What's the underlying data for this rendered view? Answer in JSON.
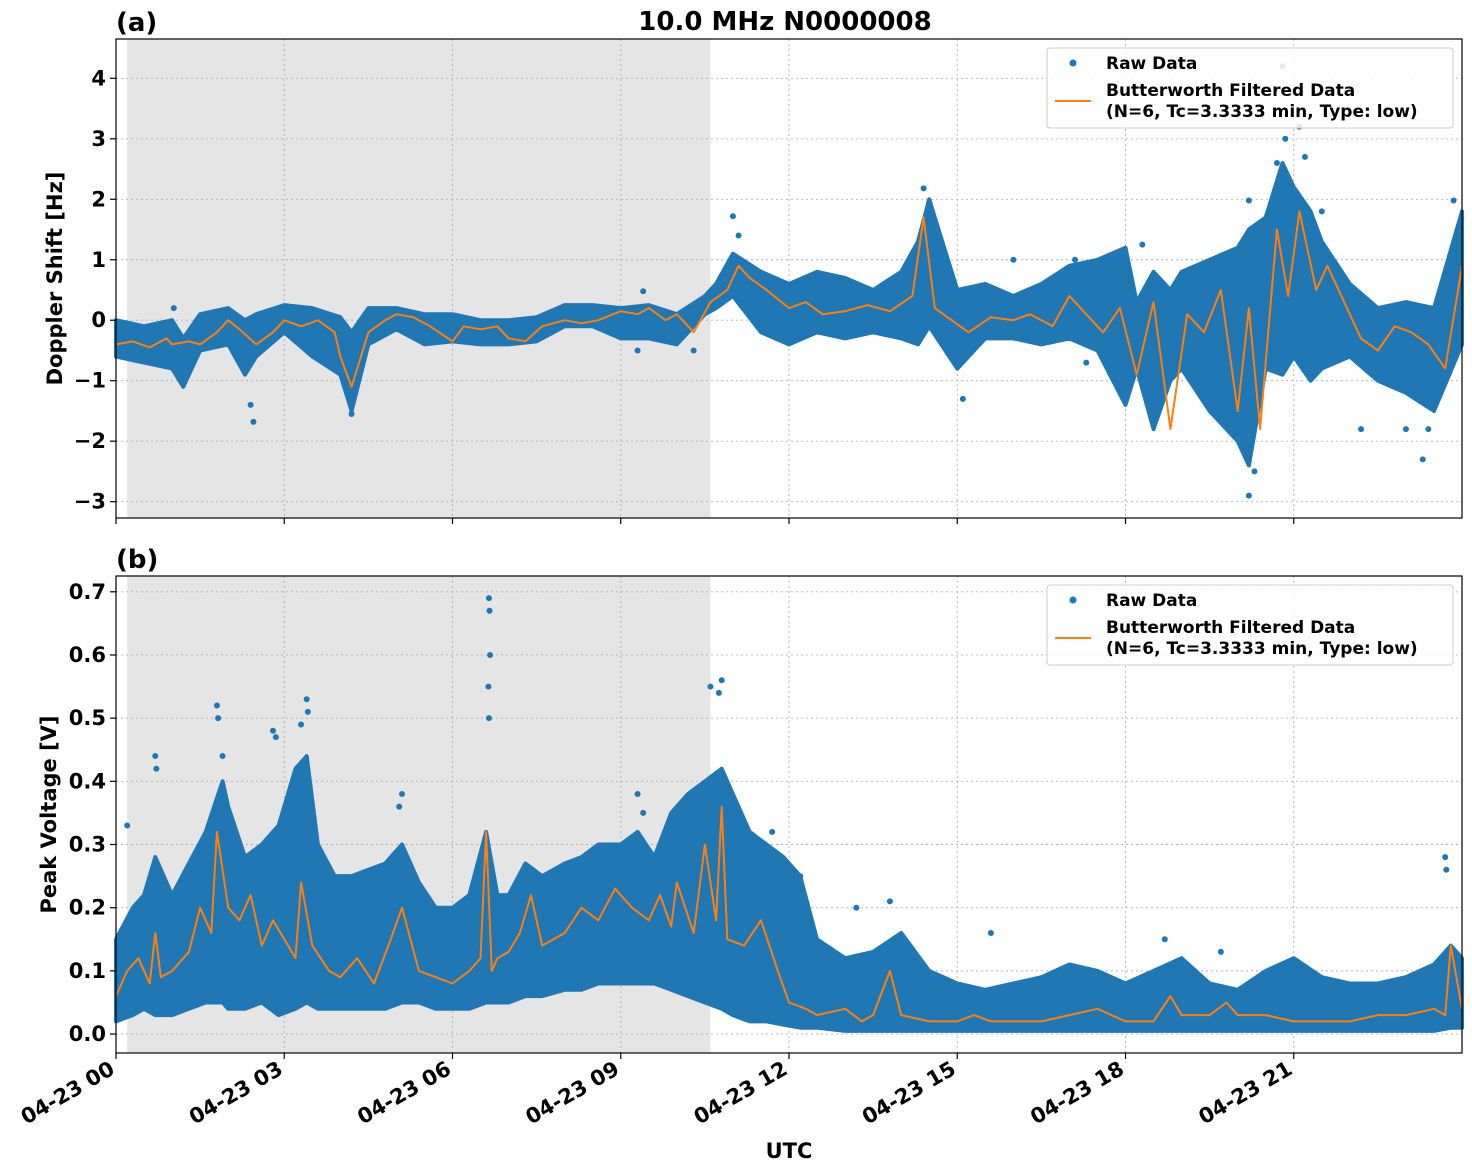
{
  "figure_title": "10.0 MHz N0000008",
  "x_axis_label": "UTC",
  "x_tick_labels": [
    "04-23 00",
    "04-23 03",
    "04-23 06",
    "04-23 09",
    "04-23 12",
    "04-23 15",
    "04-23 18",
    "04-23 21"
  ],
  "colors": {
    "raw": "#1f77b4",
    "filtered": "#ff7f0e",
    "shade": "#e5e5e5",
    "grid": "#b0b0b0"
  },
  "chart_data": [
    {
      "type": "scatter",
      "panel_label": "(a)",
      "ylabel": "Doppler Shift [Hz]",
      "ylim": [
        -3.27,
        4.65
      ],
      "xlim_hours": [
        0,
        24
      ],
      "yticks": [
        -3,
        -2,
        -1,
        0,
        1,
        2,
        3,
        4
      ],
      "ytick_labels": [
        "−3",
        "−2",
        "−1",
        "0",
        "1",
        "2",
        "3",
        "4"
      ],
      "shaded_region_hours": [
        0.2,
        10.6
      ],
      "grid": true,
      "legend_position": "top-right",
      "legend": [
        "Raw Data",
        "Butterworth Filtered Data",
        "(N=6, Tc=3.3333 min, Type: low)"
      ],
      "series": [
        {
          "name": "Raw Data",
          "kind": "band",
          "x": [
            0,
            0.5,
            1,
            1.2,
            1.5,
            2,
            2.3,
            2.5,
            3,
            3.5,
            4,
            4.2,
            4.5,
            5,
            5.5,
            6,
            6.5,
            7,
            7.5,
            8,
            8.5,
            9,
            9.5,
            10,
            10.5,
            10.7,
            11,
            11.5,
            12,
            12.5,
            13,
            13.5,
            14,
            14.3,
            14.5,
            15,
            15.5,
            16,
            16.5,
            17,
            17.5,
            18,
            18.2,
            18.5,
            18.8,
            19,
            19.5,
            20,
            20.2,
            20.5,
            20.8,
            21,
            21.3,
            21.5,
            22,
            22.5,
            23,
            23.5,
            24
          ],
          "ymin": [
            -0.6,
            -0.7,
            -0.8,
            -1.1,
            -0.5,
            -0.4,
            -0.9,
            -0.6,
            -0.2,
            -0.6,
            -0.9,
            -1.5,
            -0.4,
            -0.15,
            -0.4,
            -0.35,
            -0.4,
            -0.4,
            -0.35,
            -0.1,
            -0.1,
            -0.3,
            -0.3,
            -0.4,
            0.1,
            0.2,
            0.4,
            -0.2,
            -0.4,
            -0.2,
            -0.3,
            -0.2,
            -0.3,
            -0.4,
            -0.1,
            -0.8,
            -0.3,
            -0.3,
            -0.4,
            -0.3,
            -0.5,
            -1.4,
            -0.8,
            -1.8,
            -1.0,
            -0.8,
            -1.5,
            -2.0,
            -2.4,
            -0.8,
            -0.9,
            -0.6,
            -1.0,
            -0.8,
            -0.6,
            -1.0,
            -1.2,
            -1.5,
            -0.4
          ],
          "ymax": [
            0.0,
            -0.1,
            0.0,
            -0.3,
            0.1,
            0.2,
            0.0,
            0.1,
            0.25,
            0.2,
            0.05,
            -0.2,
            0.2,
            0.2,
            0.1,
            0.1,
            0.0,
            0.0,
            0.05,
            0.25,
            0.25,
            0.2,
            0.25,
            0.1,
            0.4,
            0.6,
            1.1,
            0.8,
            0.6,
            0.8,
            0.7,
            0.5,
            0.8,
            1.3,
            2.0,
            0.5,
            0.6,
            0.4,
            0.6,
            0.9,
            1.0,
            1.2,
            0.3,
            0.8,
            0.5,
            0.8,
            1.0,
            1.2,
            1.5,
            1.7,
            2.6,
            2.2,
            1.8,
            1.3,
            0.6,
            0.2,
            0.3,
            0.2,
            1.8
          ],
          "outliers": [
            [
              1.03,
              0.2
            ],
            [
              2.4,
              -1.4
            ],
            [
              2.45,
              -1.68
            ],
            [
              4.2,
              -1.55
            ],
            [
              9.4,
              0.48
            ],
            [
              9.3,
              -0.5
            ],
            [
              10.3,
              -0.5
            ],
            [
              11.0,
              1.72
            ],
            [
              11.1,
              1.4
            ],
            [
              14.4,
              2.18
            ],
            [
              14.5,
              1.95
            ],
            [
              15.1,
              -1.3
            ],
            [
              17.3,
              -0.7
            ],
            [
              16.0,
              1.0
            ],
            [
              17.1,
              1.0
            ],
            [
              18.3,
              1.25
            ],
            [
              19.6,
              -0.8
            ],
            [
              20.2,
              -2.9
            ],
            [
              20.3,
              -2.5
            ],
            [
              20.2,
              1.98
            ],
            [
              20.5,
              1.1
            ],
            [
              20.8,
              4.2
            ],
            [
              20.85,
              3.0
            ],
            [
              20.7,
              2.6
            ],
            [
              21.1,
              3.2
            ],
            [
              21.2,
              2.7
            ],
            [
              21.5,
              1.8
            ],
            [
              22.2,
              -1.8
            ],
            [
              23.0,
              -1.8
            ],
            [
              23.4,
              -1.8
            ],
            [
              23.3,
              -2.3
            ],
            [
              23.85,
              1.98
            ]
          ]
        },
        {
          "name": "Butterworth Filtered Data",
          "kind": "line",
          "x": [
            0,
            0.3,
            0.6,
            0.9,
            1.0,
            1.3,
            1.5,
            1.8,
            2.0,
            2.2,
            2.5,
            2.8,
            3.0,
            3.3,
            3.6,
            3.9,
            4.0,
            4.2,
            4.5,
            4.8,
            5.0,
            5.3,
            5.6,
            6.0,
            6.2,
            6.5,
            6.8,
            7.0,
            7.3,
            7.6,
            8.0,
            8.3,
            8.6,
            9.0,
            9.3,
            9.5,
            9.8,
            10.0,
            10.3,
            10.6,
            10.9,
            11.1,
            11.3,
            11.6,
            12.0,
            12.3,
            12.6,
            13.0,
            13.4,
            13.8,
            14.2,
            14.4,
            14.6,
            14.9,
            15.2,
            15.6,
            16.0,
            16.3,
            16.7,
            17.0,
            17.3,
            17.6,
            17.9,
            18.2,
            18.5,
            18.8,
            19.1,
            19.4,
            19.7,
            20.0,
            20.2,
            20.4,
            20.7,
            20.9,
            21.1,
            21.4,
            21.6,
            21.9,
            22.2,
            22.5,
            22.8,
            23.1,
            23.4,
            23.7,
            24.0
          ],
          "y": [
            -0.4,
            -0.35,
            -0.45,
            -0.3,
            -0.4,
            -0.35,
            -0.4,
            -0.2,
            0.0,
            -0.15,
            -0.4,
            -0.2,
            0.0,
            -0.1,
            0.0,
            -0.2,
            -0.6,
            -1.1,
            -0.2,
            0.0,
            0.1,
            0.05,
            -0.1,
            -0.35,
            -0.1,
            -0.15,
            -0.1,
            -0.3,
            -0.35,
            -0.1,
            0.0,
            -0.05,
            0.0,
            0.15,
            0.1,
            0.2,
            0.0,
            0.1,
            -0.2,
            0.3,
            0.5,
            0.9,
            0.7,
            0.5,
            0.2,
            0.3,
            0.1,
            0.15,
            0.25,
            0.15,
            0.4,
            1.7,
            0.2,
            0.0,
            -0.2,
            0.05,
            0.0,
            0.1,
            -0.1,
            0.4,
            0.1,
            -0.2,
            0.2,
            -0.9,
            0.3,
            -1.8,
            0.1,
            -0.2,
            0.5,
            -1.5,
            0.2,
            -1.8,
            1.5,
            0.4,
            1.8,
            0.5,
            0.9,
            0.3,
            -0.3,
            -0.5,
            -0.1,
            -0.2,
            -0.4,
            -0.8,
            0.9
          ]
        }
      ]
    },
    {
      "type": "scatter",
      "panel_label": "(b)",
      "ylabel": "Peak Voltage [V]",
      "ylim": [
        -0.03,
        0.725
      ],
      "xlim_hours": [
        0,
        24
      ],
      "yticks": [
        0.0,
        0.1,
        0.2,
        0.3,
        0.4,
        0.5,
        0.6,
        0.7
      ],
      "ytick_labels": [
        "0.0",
        "0.1",
        "0.2",
        "0.3",
        "0.4",
        "0.5",
        "0.6",
        "0.7"
      ],
      "shaded_region_hours": [
        0.2,
        10.6
      ],
      "grid": true,
      "legend_position": "top-right",
      "legend": [
        "Raw Data",
        "Butterworth Filtered Data",
        "(N=6, Tc=3.3333 min, Type: low)"
      ],
      "series": [
        {
          "name": "Raw Data",
          "kind": "band",
          "x": [
            0,
            0.3,
            0.5,
            0.7,
            1.0,
            1.3,
            1.6,
            1.9,
            2.0,
            2.3,
            2.6,
            2.9,
            3.2,
            3.4,
            3.6,
            3.9,
            4.2,
            4.5,
            4.8,
            5.1,
            5.4,
            5.7,
            6.0,
            6.3,
            6.6,
            6.8,
            7.0,
            7.3,
            7.6,
            8.0,
            8.3,
            8.6,
            9.0,
            9.3,
            9.6,
            9.9,
            10.2,
            10.5,
            10.8,
            11.0,
            11.3,
            11.6,
            11.9,
            12.2,
            12.5,
            13.0,
            13.5,
            14.0,
            14.5,
            15.0,
            15.5,
            16.0,
            16.5,
            17.0,
            17.5,
            18.0,
            18.5,
            19.0,
            19.5,
            20.0,
            20.5,
            21.0,
            21.5,
            22.0,
            22.5,
            23.0,
            23.5,
            23.8,
            24.0
          ],
          "ymin": [
            0.02,
            0.03,
            0.04,
            0.03,
            0.03,
            0.04,
            0.05,
            0.05,
            0.04,
            0.04,
            0.05,
            0.03,
            0.04,
            0.05,
            0.04,
            0.04,
            0.04,
            0.04,
            0.04,
            0.05,
            0.05,
            0.04,
            0.04,
            0.04,
            0.05,
            0.05,
            0.05,
            0.06,
            0.06,
            0.07,
            0.07,
            0.08,
            0.08,
            0.08,
            0.08,
            0.07,
            0.06,
            0.05,
            0.04,
            0.03,
            0.02,
            0.02,
            0.015,
            0.01,
            0.01,
            0.005,
            0.005,
            0.005,
            0.005,
            0.005,
            0.005,
            0.005,
            0.005,
            0.005,
            0.005,
            0.005,
            0.005,
            0.005,
            0.005,
            0.005,
            0.005,
            0.005,
            0.005,
            0.005,
            0.005,
            0.005,
            0.005,
            0.01,
            0.01
          ],
          "ymax": [
            0.15,
            0.2,
            0.22,
            0.28,
            0.22,
            0.27,
            0.32,
            0.4,
            0.36,
            0.28,
            0.3,
            0.33,
            0.42,
            0.44,
            0.3,
            0.25,
            0.25,
            0.26,
            0.27,
            0.3,
            0.24,
            0.2,
            0.2,
            0.22,
            0.32,
            0.22,
            0.22,
            0.27,
            0.25,
            0.27,
            0.28,
            0.3,
            0.3,
            0.32,
            0.28,
            0.35,
            0.38,
            0.4,
            0.42,
            0.38,
            0.32,
            0.3,
            0.28,
            0.25,
            0.15,
            0.12,
            0.13,
            0.16,
            0.1,
            0.08,
            0.07,
            0.08,
            0.09,
            0.11,
            0.1,
            0.08,
            0.1,
            0.12,
            0.08,
            0.07,
            0.1,
            0.12,
            0.09,
            0.08,
            0.08,
            0.09,
            0.11,
            0.14,
            0.12
          ],
          "outliers": [
            [
              0.2,
              0.33
            ],
            [
              0.7,
              0.44
            ],
            [
              0.72,
              0.42
            ],
            [
              1.8,
              0.52
            ],
            [
              1.82,
              0.5
            ],
            [
              1.9,
              0.44
            ],
            [
              2.8,
              0.48
            ],
            [
              2.85,
              0.47
            ],
            [
              3.4,
              0.53
            ],
            [
              3.42,
              0.51
            ],
            [
              3.3,
              0.49
            ],
            [
              5.1,
              0.38
            ],
            [
              5.05,
              0.36
            ],
            [
              6.65,
              0.69
            ],
            [
              6.66,
              0.67
            ],
            [
              6.67,
              0.6
            ],
            [
              6.64,
              0.55
            ],
            [
              6.65,
              0.5
            ],
            [
              9.3,
              0.38
            ],
            [
              9.4,
              0.35
            ],
            [
              10.6,
              0.55
            ],
            [
              10.8,
              0.56
            ],
            [
              10.75,
              0.54
            ],
            [
              11.7,
              0.32
            ],
            [
              12.2,
              0.25
            ],
            [
              13.2,
              0.2
            ],
            [
              13.8,
              0.21
            ],
            [
              14.1,
              0.13
            ],
            [
              15.6,
              0.16
            ],
            [
              18.7,
              0.15
            ],
            [
              19.7,
              0.13
            ],
            [
              23.7,
              0.28
            ],
            [
              23.72,
              0.26
            ]
          ]
        },
        {
          "name": "Butterworth Filtered Data",
          "kind": "line",
          "x": [
            0,
            0.2,
            0.4,
            0.6,
            0.7,
            0.8,
            1.0,
            1.3,
            1.5,
            1.7,
            1.8,
            2.0,
            2.2,
            2.4,
            2.6,
            2.8,
            3.0,
            3.2,
            3.3,
            3.5,
            3.8,
            4.0,
            4.3,
            4.6,
            4.9,
            5.1,
            5.4,
            5.7,
            6.0,
            6.3,
            6.5,
            6.6,
            6.7,
            6.8,
            7.0,
            7.2,
            7.4,
            7.6,
            7.8,
            8.0,
            8.3,
            8.6,
            8.9,
            9.2,
            9.5,
            9.7,
            9.9,
            10.0,
            10.3,
            10.5,
            10.7,
            10.8,
            10.9,
            11.2,
            11.5,
            11.8,
            12.0,
            12.3,
            12.5,
            13.0,
            13.3,
            13.5,
            13.8,
            14.0,
            14.5,
            15.0,
            15.3,
            15.6,
            16.0,
            16.5,
            17.0,
            17.5,
            18.0,
            18.5,
            18.8,
            19.0,
            19.5,
            19.8,
            20.0,
            20.5,
            21.0,
            21.5,
            22.0,
            22.5,
            23.0,
            23.5,
            23.7,
            23.8,
            24.0
          ],
          "y": [
            0.06,
            0.1,
            0.12,
            0.08,
            0.16,
            0.09,
            0.1,
            0.13,
            0.2,
            0.16,
            0.32,
            0.2,
            0.18,
            0.22,
            0.14,
            0.18,
            0.15,
            0.12,
            0.24,
            0.14,
            0.1,
            0.09,
            0.12,
            0.08,
            0.15,
            0.2,
            0.1,
            0.09,
            0.08,
            0.1,
            0.12,
            0.32,
            0.1,
            0.12,
            0.13,
            0.16,
            0.22,
            0.14,
            0.15,
            0.16,
            0.2,
            0.18,
            0.23,
            0.2,
            0.18,
            0.22,
            0.17,
            0.24,
            0.16,
            0.3,
            0.18,
            0.36,
            0.15,
            0.14,
            0.18,
            0.1,
            0.05,
            0.04,
            0.03,
            0.04,
            0.02,
            0.03,
            0.1,
            0.03,
            0.02,
            0.02,
            0.03,
            0.02,
            0.02,
            0.02,
            0.03,
            0.04,
            0.02,
            0.02,
            0.06,
            0.03,
            0.03,
            0.05,
            0.03,
            0.03,
            0.02,
            0.02,
            0.02,
            0.03,
            0.03,
            0.04,
            0.03,
            0.14,
            0.04
          ]
        }
      ]
    }
  ]
}
